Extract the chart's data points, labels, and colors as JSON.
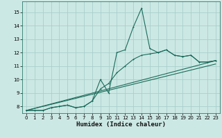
{
  "title": "",
  "xlabel": "Humidex (Indice chaleur)",
  "bg_color": "#cce8e4",
  "grid_color": "#a8d0cc",
  "line_color": "#1a6b5a",
  "xlim": [
    -0.5,
    23.5
  ],
  "ylim": [
    7.5,
    15.8
  ],
  "xticks": [
    0,
    1,
    2,
    3,
    4,
    5,
    6,
    7,
    8,
    9,
    10,
    11,
    12,
    13,
    14,
    15,
    16,
    17,
    18,
    19,
    20,
    21,
    22,
    23
  ],
  "yticks": [
    8,
    9,
    10,
    11,
    12,
    13,
    14,
    15
  ],
  "curve1_x": [
    0,
    1,
    2,
    3,
    4,
    5,
    6,
    7,
    8,
    9,
    10,
    11,
    12,
    13,
    14,
    15,
    16,
    17,
    18,
    19,
    20,
    21,
    22,
    23
  ],
  "curve1_y": [
    7.7,
    7.7,
    7.7,
    7.9,
    8.0,
    8.1,
    7.9,
    8.0,
    8.4,
    10.0,
    9.0,
    12.0,
    12.2,
    13.9,
    15.3,
    12.3,
    12.0,
    12.2,
    11.8,
    11.7,
    11.8,
    11.3,
    11.3,
    11.4
  ],
  "curve2_x": [
    0,
    1,
    2,
    3,
    4,
    5,
    6,
    7,
    8,
    9,
    10,
    11,
    12,
    13,
    14,
    15,
    16,
    17,
    18,
    19,
    20,
    21,
    22,
    23
  ],
  "curve2_y": [
    7.7,
    7.7,
    7.7,
    7.9,
    8.0,
    8.1,
    7.9,
    8.0,
    8.4,
    9.3,
    9.7,
    10.5,
    11.0,
    11.5,
    11.8,
    11.9,
    12.0,
    12.2,
    11.8,
    11.7,
    11.8,
    11.3,
    11.3,
    11.4
  ],
  "line3": [
    [
      0,
      7.7
    ],
    [
      23,
      11.4
    ]
  ],
  "line4": [
    [
      0,
      7.7
    ],
    [
      23,
      11.15
    ]
  ]
}
